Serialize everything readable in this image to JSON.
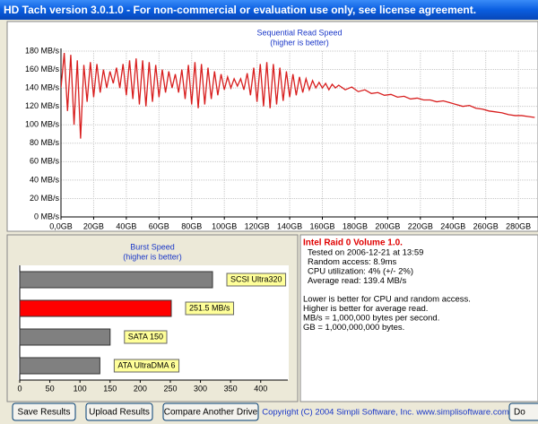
{
  "window": {
    "title": "HD Tach version 3.0.1.0  - For non-commercial or evaluation use only, see license agreement."
  },
  "chart_data": [
    {
      "type": "line",
      "title": "Sequential Read Speed",
      "subtitle": "(higher is better)",
      "x": [
        0,
        2,
        4,
        6,
        8,
        10,
        12,
        14,
        16,
        18,
        20,
        22,
        24,
        26,
        28,
        30,
        32,
        34,
        36,
        38,
        40,
        42,
        44,
        46,
        48,
        50,
        52,
        54,
        56,
        58,
        60,
        62,
        64,
        66,
        68,
        70,
        72,
        74,
        76,
        78,
        80,
        82,
        84,
        86,
        88,
        90,
        92,
        94,
        96,
        98,
        100,
        102,
        104,
        106,
        108,
        110,
        112,
        114,
        116,
        118,
        120,
        122,
        124,
        126,
        128,
        130,
        132,
        134,
        136,
        138,
        140,
        142,
        144,
        146,
        148,
        150,
        152,
        154,
        156,
        158,
        160,
        162,
        164,
        166,
        168,
        170,
        174,
        178,
        182,
        186,
        190,
        194,
        198,
        202,
        206,
        210,
        214,
        218,
        222,
        226,
        230,
        234,
        238,
        242,
        246,
        250,
        254,
        258,
        262,
        266,
        270,
        274,
        278,
        282,
        286,
        290
      ],
      "series": [
        {
          "color": "#d81e1e",
          "values": [
            140,
            178,
            115,
            176,
            100,
            170,
            85,
            165,
            125,
            168,
            130,
            166,
            135,
            160,
            140,
            158,
            145,
            162,
            140,
            166,
            132,
            170,
            128,
            172,
            122,
            170,
            120,
            168,
            125,
            165,
            130,
            160,
            135,
            158,
            140,
            155,
            135,
            160,
            128,
            165,
            122,
            168,
            118,
            166,
            122,
            162,
            128,
            158,
            132,
            155,
            138,
            152,
            140,
            150,
            142,
            150,
            138,
            156,
            132,
            162,
            125,
            166,
            120,
            168,
            118,
            166,
            122,
            162,
            126,
            158,
            130,
            155,
            132,
            152,
            135,
            150,
            138,
            148,
            140,
            146,
            140,
            145,
            138,
            144,
            140,
            143,
            138,
            141,
            136,
            138,
            134,
            135,
            132,
            133,
            130,
            131,
            128,
            129,
            127,
            127,
            125,
            126,
            124,
            122,
            120,
            121,
            118,
            117,
            115,
            114,
            113,
            111,
            110,
            110,
            109,
            108
          ]
        }
      ],
      "xlim": [
        0,
        292
      ],
      "ylim": [
        0,
        180
      ],
      "xticks": [
        {
          "value": 0,
          "label": "0,0GB"
        },
        {
          "value": 20,
          "label": "20GB"
        },
        {
          "value": 40,
          "label": "40GB"
        },
        {
          "value": 60,
          "label": "60GB"
        },
        {
          "value": 80,
          "label": "80GB"
        },
        {
          "value": 100,
          "label": "100GB"
        },
        {
          "value": 120,
          "label": "120GB"
        },
        {
          "value": 140,
          "label": "140GB"
        },
        {
          "value": 160,
          "label": "160GB"
        },
        {
          "value": 180,
          "label": "180GB"
        },
        {
          "value": 200,
          "label": "200GB"
        },
        {
          "value": 220,
          "label": "220GB"
        },
        {
          "value": 240,
          "label": "240GB"
        },
        {
          "value": 260,
          "label": "260GB"
        },
        {
          "value": 280,
          "label": "280GB"
        }
      ],
      "yticks": [
        {
          "value": 0,
          "label": "0 MB/s"
        },
        {
          "value": 20,
          "label": "20 MB/s"
        },
        {
          "value": 40,
          "label": "40 MB/s"
        },
        {
          "value": 60,
          "label": "60 MB/s"
        },
        {
          "value": 80,
          "label": "80 MB/s"
        },
        {
          "value": 100,
          "label": "100 MB/s"
        },
        {
          "value": 120,
          "label": "120 MB/s"
        },
        {
          "value": 140,
          "label": "140 MB/s"
        },
        {
          "value": 160,
          "label": "160 MB/s"
        },
        {
          "value": 180,
          "label": "180 MB/s"
        }
      ],
      "grid": true
    },
    {
      "type": "hbar",
      "title": "Burst Speed",
      "subtitle": "(higher is better)",
      "categories": [
        "SCSI Ultra320",
        null,
        "SATA 150",
        "ATA UltraDMA 6"
      ],
      "values": [
        320,
        251.5,
        150,
        133
      ],
      "value_labels": [
        null,
        "251.5 MB/s",
        null,
        null
      ],
      "colors": [
        "#808080",
        "#ff0000",
        "#808080",
        "#808080"
      ],
      "xlim": [
        0,
        445
      ],
      "xticks": [
        0,
        50,
        100,
        150,
        200,
        250,
        300,
        350,
        400
      ]
    }
  ],
  "info": {
    "drive": "Intel Raid 0 Volume 1.0.",
    "lines": [
      "Tested on 2006-12-21 at 13:59",
      "Random access: 8.9ms",
      "CPU utilization: 4% (+/- 2%)",
      "Average read: 139.4 MB/s"
    ],
    "notes": [
      "Lower is better for CPU and random access.",
      "Higher is better for average read.",
      "MB/s = 1,000,000 bytes per second.",
      "GB = 1,000,000,000 bytes."
    ]
  },
  "buttons": [
    "Save Results",
    "Upload Results",
    "Compare Another Drive",
    "Do"
  ],
  "copyright": "Copyright (C) 2004 Simpli Software, Inc. www.simplisoftware.com"
}
